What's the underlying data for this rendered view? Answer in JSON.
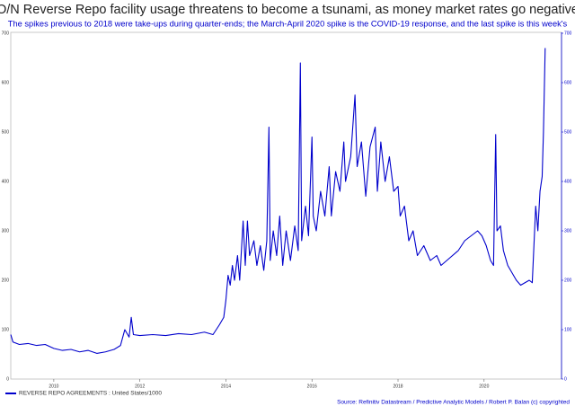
{
  "chart_data": {
    "type": "line",
    "title": "O/N Reverse Repo facility usage threatens to become a tsunami, as money market rates go negative",
    "subtitle": "The spikes previous to 2018 were take-ups during quarter-ends; the March-April 2020 spike is the COVID-19 response, and the last spike is this week's",
    "source": "Source: Refinitiv Datastream /  Predictive Analytic Models / Robert P. Balan (c) copyrighted",
    "x": [
      2009.0,
      2009.05,
      2009.2,
      2009.4,
      2009.6,
      2009.8,
      2010.0,
      2010.2,
      2010.4,
      2010.6,
      2010.8,
      2011.0,
      2011.2,
      2011.4,
      2011.55,
      2011.65,
      2011.75,
      2011.8,
      2011.85,
      2012.0,
      2012.3,
      2012.6,
      2012.9,
      2013.2,
      2013.5,
      2013.7,
      2013.85,
      2013.95,
      2014.0,
      2014.05,
      2014.1,
      2014.15,
      2014.2,
      2014.27,
      2014.32,
      2014.4,
      2014.45,
      2014.5,
      2014.55,
      2014.65,
      2014.72,
      2014.8,
      2014.88,
      2014.95,
      2015.0,
      2015.03,
      2015.1,
      2015.18,
      2015.25,
      2015.32,
      2015.4,
      2015.5,
      2015.6,
      2015.68,
      2015.73,
      2015.76,
      2015.85,
      2015.92,
      2016.0,
      2016.03,
      2016.1,
      2016.2,
      2016.3,
      2016.4,
      2016.45,
      2016.55,
      2016.65,
      2016.74,
      2016.78,
      2016.9,
      2017.0,
      2017.05,
      2017.15,
      2017.25,
      2017.35,
      2017.47,
      2017.52,
      2017.6,
      2017.7,
      2017.8,
      2017.9,
      2018.0,
      2018.05,
      2018.15,
      2018.25,
      2018.35,
      2018.45,
      2018.6,
      2018.75,
      2018.9,
      2019.0,
      2019.2,
      2019.4,
      2019.55,
      2019.7,
      2019.85,
      2019.95,
      2020.05,
      2020.15,
      2020.22,
      2020.27,
      2020.3,
      2020.38,
      2020.45,
      2020.55,
      2020.65,
      2020.75,
      2020.85,
      2020.95,
      2021.05,
      2021.12,
      2021.2,
      2021.25,
      2021.3,
      2021.35,
      2021.38,
      2021.42
    ],
    "series": [
      {
        "name": "REVERSE REPO AGREEMENTS : United States/1000",
        "color": "#0000cc",
        "values": [
          90,
          75,
          70,
          72,
          68,
          70,
          62,
          58,
          60,
          55,
          58,
          52,
          55,
          60,
          68,
          100,
          85,
          125,
          90,
          88,
          90,
          88,
          92,
          90,
          95,
          90,
          110,
          125,
          160,
          210,
          190,
          230,
          200,
          250,
          200,
          320,
          230,
          320,
          250,
          280,
          230,
          270,
          220,
          280,
          510,
          240,
          300,
          250,
          330,
          230,
          300,
          240,
          310,
          260,
          640,
          280,
          350,
          290,
          490,
          330,
          300,
          380,
          330,
          430,
          330,
          420,
          380,
          480,
          400,
          450,
          575,
          430,
          480,
          370,
          470,
          510,
          380,
          480,
          400,
          450,
          380,
          390,
          330,
          350,
          280,
          300,
          250,
          270,
          240,
          250,
          230,
          245,
          260,
          280,
          290,
          300,
          290,
          270,
          240,
          230,
          495,
          300,
          310,
          260,
          230,
          215,
          200,
          190,
          195,
          200,
          195,
          350,
          300,
          380,
          410,
          500,
          670
        ]
      }
    ],
    "xlim": [
      2009.0,
      2021.8
    ],
    "xticks": [
      2010,
      2012,
      2014,
      2016,
      2018,
      2020
    ],
    "ylim": [
      0,
      700
    ],
    "yticks": [
      0,
      100,
      200,
      300,
      400,
      500,
      600,
      700
    ]
  }
}
